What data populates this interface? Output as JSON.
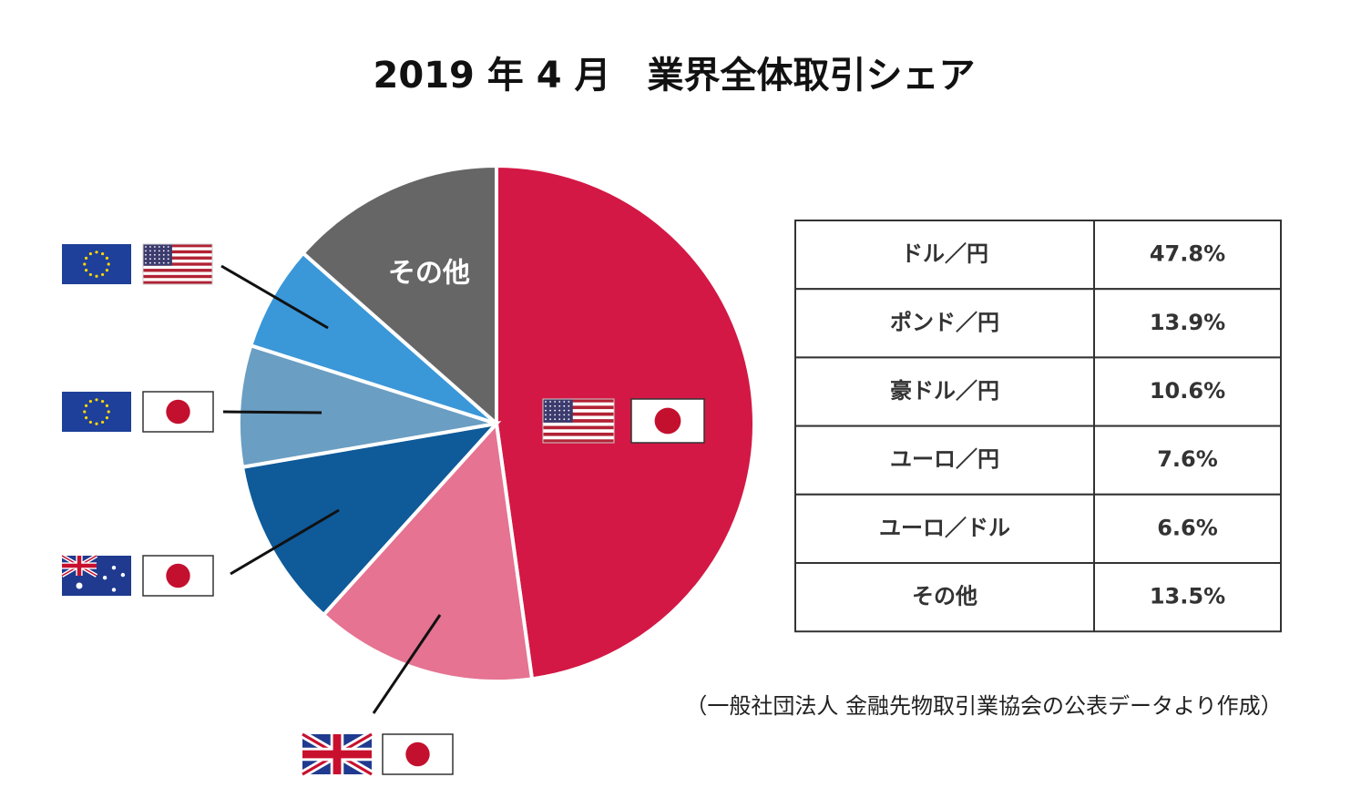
{
  "chart_data": {
    "type": "pie",
    "title": "2019 年 4 月　業界全体取引シェア",
    "categories": [
      "ドル／円",
      "ポンド／円",
      "豪ドル／円",
      "ユーロ／円",
      "ユーロ／ドル",
      "その他"
    ],
    "values": [
      47.8,
      13.9,
      10.6,
      7.6,
      6.6,
      13.5
    ],
    "value_labels": [
      "47.8%",
      "13.9%",
      "10.6%",
      "7.6%",
      "6.6%",
      "13.5%"
    ],
    "colors": [
      "#d31845",
      "#e57391",
      "#0f5a99",
      "#6a9ec3",
      "#3a97d8",
      "#666666"
    ],
    "source": "（一般社団法人 金融先物取引業協会の公表データより作成）"
  }
}
